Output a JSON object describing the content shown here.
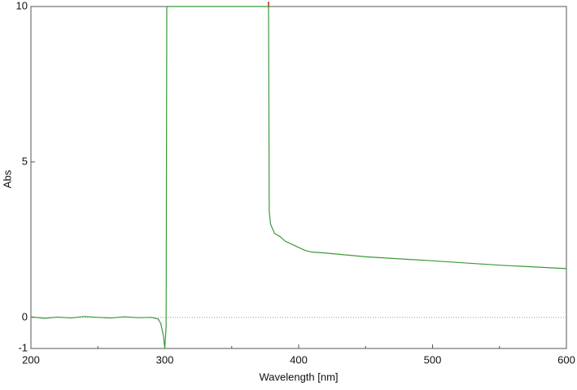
{
  "chart_data": {
    "type": "line",
    "x_label": "Wavelength [nm]",
    "y_label": "Abs",
    "color": "#3a9a3a",
    "x": [
      200,
      210,
      220,
      230,
      240,
      250,
      260,
      270,
      280,
      290,
      295,
      297,
      299,
      300,
      301,
      301.5,
      302,
      340,
      377.5,
      378,
      379,
      380,
      382,
      384,
      386,
      390,
      395,
      400,
      405,
      410,
      420,
      450,
      500,
      550,
      600
    ],
    "values": [
      0.02,
      -0.03,
      0.01,
      -0.02,
      0.03,
      0.0,
      -0.02,
      0.02,
      -0.01,
      0.0,
      -0.05,
      -0.2,
      -0.6,
      -1.0,
      -0.3,
      10,
      10,
      10,
      10,
      3.4,
      3.0,
      2.9,
      2.7,
      2.65,
      2.6,
      2.45,
      2.35,
      2.25,
      2.15,
      2.1,
      2.07,
      1.95,
      1.82,
      1.68,
      1.57
    ],
    "xlim": [
      200,
      600
    ],
    "ylim": [
      -1,
      10
    ],
    "xticks": [
      200,
      300,
      400,
      500,
      600
    ],
    "xminorticks": [
      250,
      350,
      450,
      550
    ],
    "yticks": [
      -1,
      0,
      5,
      10
    ],
    "zero_line": 0
  }
}
